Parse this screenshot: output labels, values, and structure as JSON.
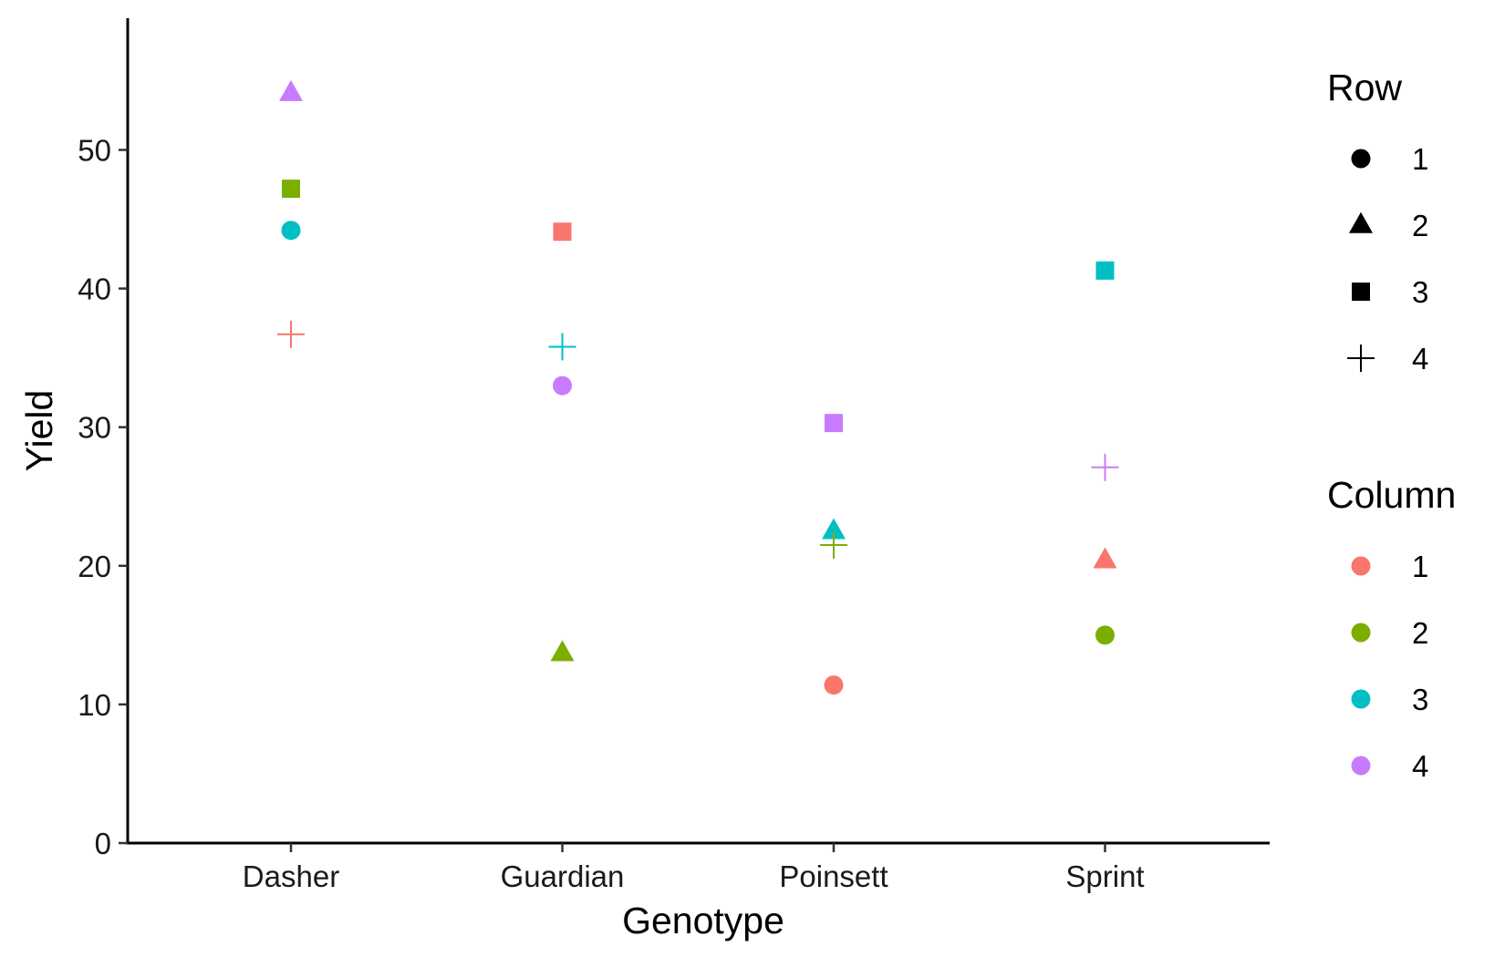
{
  "chart_data": {
    "type": "scatter",
    "title": "",
    "xlabel": "Genotype",
    "ylabel": "Yield",
    "categories": [
      "Dasher",
      "Guardian",
      "Poinsett",
      "Sprint"
    ],
    "ylim": [
      0,
      59.5
    ],
    "yticks": [
      0,
      10,
      20,
      30,
      40,
      50
    ],
    "grid": false,
    "legend_position": "right",
    "shape_legend": {
      "title": "Row",
      "entries": [
        {
          "label": "1",
          "shape": "circle"
        },
        {
          "label": "2",
          "shape": "triangle"
        },
        {
          "label": "3",
          "shape": "square"
        },
        {
          "label": "4",
          "shape": "plus"
        }
      ]
    },
    "color_legend": {
      "title": "Column",
      "entries": [
        {
          "label": "1",
          "color": "#F8766D"
        },
        {
          "label": "2",
          "color": "#7CAE00"
        },
        {
          "label": "3",
          "color": "#00BFC4"
        },
        {
          "label": "4",
          "color": "#C77CFF"
        }
      ]
    },
    "points": [
      {
        "genotype": "Dasher",
        "row": "2",
        "column": "4",
        "yield": 54.1
      },
      {
        "genotype": "Dasher",
        "row": "3",
        "column": "2",
        "yield": 47.2
      },
      {
        "genotype": "Dasher",
        "row": "1",
        "column": "3",
        "yield": 44.2
      },
      {
        "genotype": "Dasher",
        "row": "4",
        "column": "1",
        "yield": 36.7
      },
      {
        "genotype": "Guardian",
        "row": "3",
        "column": "1",
        "yield": 44.1
      },
      {
        "genotype": "Guardian",
        "row": "4",
        "column": "3",
        "yield": 35.8
      },
      {
        "genotype": "Guardian",
        "row": "1",
        "column": "4",
        "yield": 33.0
      },
      {
        "genotype": "Guardian",
        "row": "2",
        "column": "2",
        "yield": 13.7
      },
      {
        "genotype": "Poinsett",
        "row": "3",
        "column": "4",
        "yield": 30.3
      },
      {
        "genotype": "Poinsett",
        "row": "2",
        "column": "3",
        "yield": 22.5
      },
      {
        "genotype": "Poinsett",
        "row": "4",
        "column": "2",
        "yield": 21.5
      },
      {
        "genotype": "Poinsett",
        "row": "1",
        "column": "1",
        "yield": 11.4
      },
      {
        "genotype": "Sprint",
        "row": "3",
        "column": "3",
        "yield": 41.3
      },
      {
        "genotype": "Sprint",
        "row": "4",
        "column": "4",
        "yield": 27.1
      },
      {
        "genotype": "Sprint",
        "row": "2",
        "column": "1",
        "yield": 20.4
      },
      {
        "genotype": "Sprint",
        "row": "1",
        "column": "2",
        "yield": 15.0
      }
    ]
  }
}
